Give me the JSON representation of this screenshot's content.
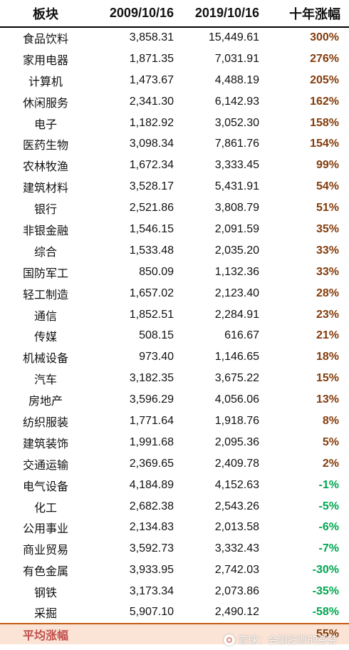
{
  "header": {
    "sector": "板块",
    "date1": "2009/10/16",
    "date2": "2019/10/16",
    "change": "十年涨幅"
  },
  "rows": [
    {
      "sector": "食品饮料",
      "v1": "3,858.31",
      "v2": "15,449.61",
      "chg": "300%"
    },
    {
      "sector": "家用电器",
      "v1": "1,871.35",
      "v2": "7,031.91",
      "chg": "276%"
    },
    {
      "sector": "计算机",
      "v1": "1,473.67",
      "v2": "4,488.19",
      "chg": "205%"
    },
    {
      "sector": "休闲服务",
      "v1": "2,341.30",
      "v2": "6,142.93",
      "chg": "162%"
    },
    {
      "sector": "电子",
      "v1": "1,182.92",
      "v2": "3,052.30",
      "chg": "158%"
    },
    {
      "sector": "医药生物",
      "v1": "3,098.34",
      "v2": "7,861.76",
      "chg": "154%"
    },
    {
      "sector": "农林牧渔",
      "v1": "1,672.34",
      "v2": "3,333.45",
      "chg": "99%"
    },
    {
      "sector": "建筑材料",
      "v1": "3,528.17",
      "v2": "5,431.91",
      "chg": "54%"
    },
    {
      "sector": "银行",
      "v1": "2,521.86",
      "v2": "3,808.79",
      "chg": "51%"
    },
    {
      "sector": "非银金融",
      "v1": "1,546.15",
      "v2": "2,091.59",
      "chg": "35%"
    },
    {
      "sector": "综合",
      "v1": "1,533.48",
      "v2": "2,035.20",
      "chg": "33%"
    },
    {
      "sector": "国防军工",
      "v1": "850.09",
      "v2": "1,132.36",
      "chg": "33%"
    },
    {
      "sector": "轻工制造",
      "v1": "1,657.02",
      "v2": "2,123.40",
      "chg": "28%"
    },
    {
      "sector": "通信",
      "v1": "1,852.51",
      "v2": "2,284.91",
      "chg": "23%"
    },
    {
      "sector": "传媒",
      "v1": "508.15",
      "v2": "616.67",
      "chg": "21%"
    },
    {
      "sector": "机械设备",
      "v1": "973.40",
      "v2": "1,146.65",
      "chg": "18%"
    },
    {
      "sector": "汽车",
      "v1": "3,182.35",
      "v2": "3,675.22",
      "chg": "15%"
    },
    {
      "sector": "房地产",
      "v1": "3,596.29",
      "v2": "4,056.06",
      "chg": "13%"
    },
    {
      "sector": "纺织服装",
      "v1": "1,771.64",
      "v2": "1,918.76",
      "chg": "8%"
    },
    {
      "sector": "建筑装饰",
      "v1": "1,991.68",
      "v2": "2,095.36",
      "chg": "5%"
    },
    {
      "sector": "交通运输",
      "v1": "2,369.65",
      "v2": "2,409.78",
      "chg": "2%"
    },
    {
      "sector": "电气设备",
      "v1": "4,184.89",
      "v2": "4,152.63",
      "chg": "-1%"
    },
    {
      "sector": "化工",
      "v1": "2,682.38",
      "v2": "2,543.26",
      "chg": "-5%"
    },
    {
      "sector": "公用事业",
      "v1": "2,134.83",
      "v2": "2,013.58",
      "chg": "-6%"
    },
    {
      "sector": "商业贸易",
      "v1": "3,592.73",
      "v2": "3,332.43",
      "chg": "-7%"
    },
    {
      "sector": "有色金属",
      "v1": "3,933.95",
      "v2": "2,742.03",
      "chg": "-30%"
    },
    {
      "sector": "钢铁",
      "v1": "3,173.34",
      "v2": "2,073.86",
      "chg": "-35%"
    },
    {
      "sector": "采掘",
      "v1": "5,907.10",
      "v2": "2,490.12",
      "chg": "-58%"
    }
  ],
  "footer": {
    "label": "平均涨幅",
    "value": "55%"
  },
  "watermark": {
    "text": "雪球：会聊股票的芬芬",
    "icon": "snowball-logo-icon"
  },
  "colors": {
    "positive": "#843c0c",
    "negative": "#00a651",
    "footer_bg": "#fbe4d5",
    "footer_label": "#c0504d"
  }
}
